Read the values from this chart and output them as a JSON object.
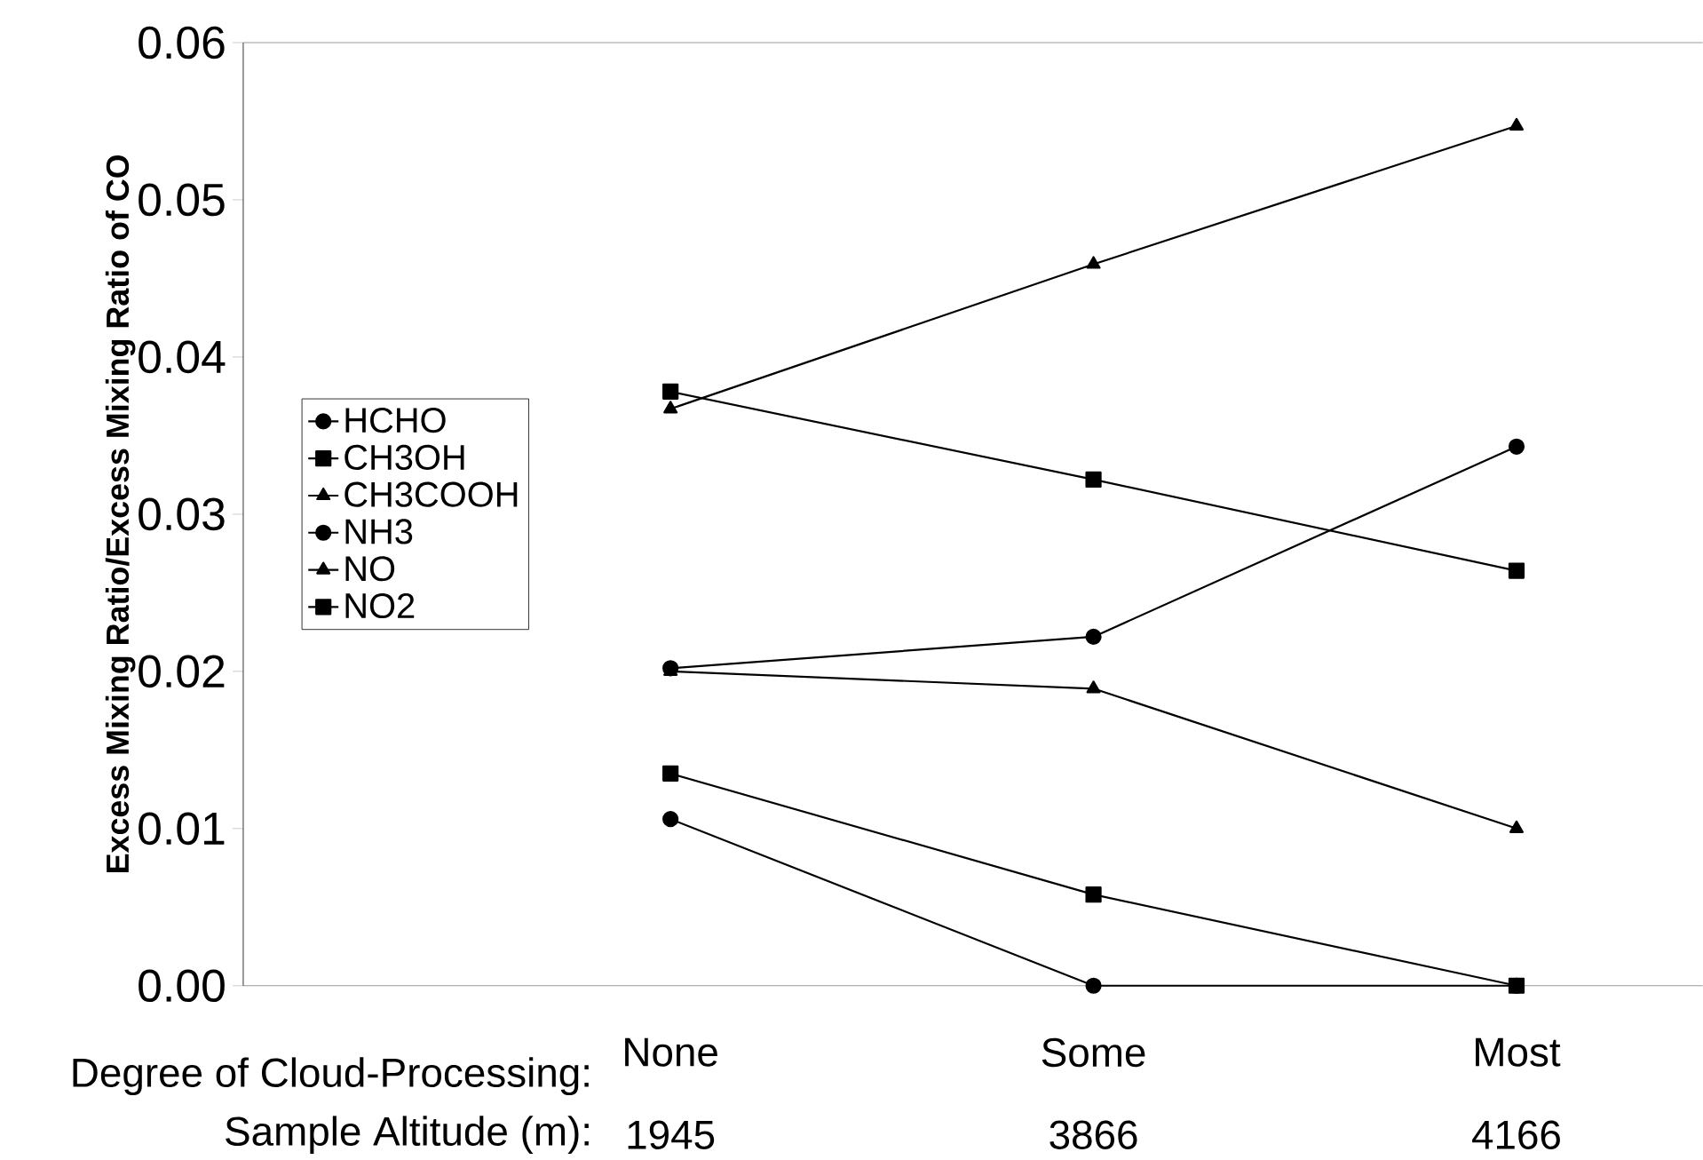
{
  "chart_data": {
    "type": "line",
    "ylabel": "Excess Mixing Ratio/Excess Mixing Ratio of CO",
    "xlabel": "Degree of Cloud-Processing:",
    "categories": [
      "None",
      "Some",
      "Most"
    ],
    "ylim": [
      0,
      0.06
    ],
    "yticks": [
      {
        "value": 0,
        "label": "0.00"
      },
      {
        "value": 0.01,
        "label": "0.01"
      },
      {
        "value": 0.02,
        "label": "0.02"
      },
      {
        "value": 0.03,
        "label": "0.03"
      },
      {
        "value": 0.04,
        "label": "0.04"
      },
      {
        "value": 0.05,
        "label": "0.05"
      },
      {
        "value": 0.06,
        "label": "0.06"
      }
    ],
    "series": [
      {
        "name": "HCHO",
        "color": "#000000",
        "marker": "circle",
        "values": [
          0.0202,
          0.0222,
          0.0343
        ]
      },
      {
        "name": "CH3OH",
        "color": "#000000",
        "marker": "square",
        "values": [
          0.0135,
          0.0058,
          0
        ]
      },
      {
        "name": "CH3COOH",
        "color": "#000000",
        "marker": "triangle",
        "values": [
          0.02,
          0.0189,
          0.01
        ]
      },
      {
        "name": "NH3",
        "color": "#000000",
        "marker": "circle",
        "values": [
          0.0106,
          0,
          0
        ]
      },
      {
        "name": "NO",
        "color": "#000000",
        "marker": "triangle",
        "values": [
          0.0367,
          0.0459,
          0.0547
        ]
      },
      {
        "name": "NO2",
        "color": "#000000",
        "marker": "square",
        "values": [
          0.0378,
          0.0322,
          0.0264
        ]
      }
    ],
    "annotations": [
      "Sample Altitude (m):",
      "1945",
      "3866",
      "4166"
    ],
    "legend": "left",
    "grid": false,
    "line_style": "solid"
  }
}
